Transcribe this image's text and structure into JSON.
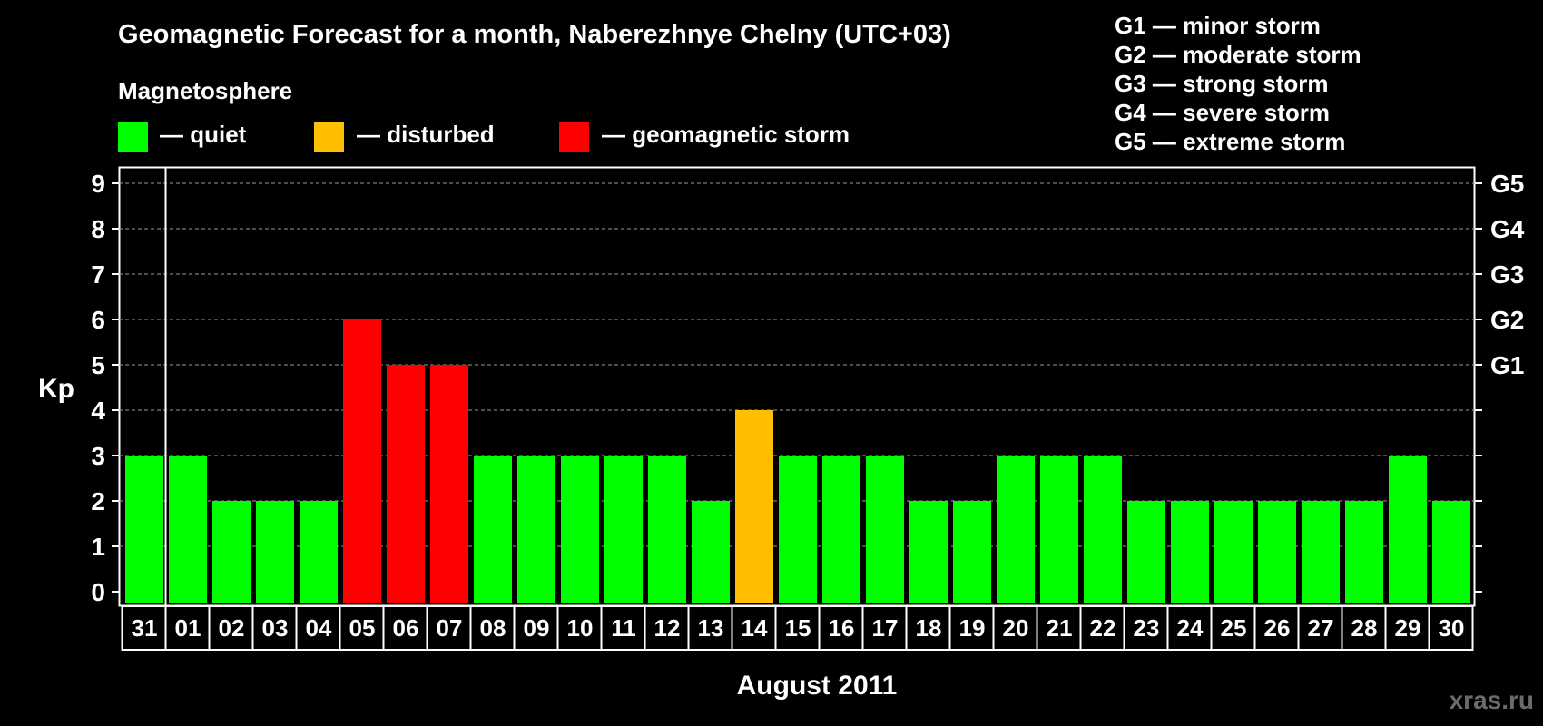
{
  "chart_data": {
    "type": "bar",
    "title": "Geomagnetic Forecast for a month, Naberezhnye Chelny (UTC+03)",
    "legend_title": "Magnetosphere",
    "legend": [
      {
        "label": "— quiet",
        "color": "#00ff00"
      },
      {
        "label": "— disturbed",
        "color": "#ffbf00"
      },
      {
        "label": "— geomagnetic storm",
        "color": "#ff0000"
      }
    ],
    "storm_scale": [
      "G1 — minor storm",
      "G2 — moderate storm",
      "G3 — strong storm",
      "G4 — severe storm",
      "G5 — extreme storm"
    ],
    "ylabel": "Kp",
    "xlabel": "August 2011",
    "ylim": [
      0,
      9
    ],
    "yticks": [
      "0",
      "1",
      "2",
      "3",
      "4",
      "5",
      "6",
      "7",
      "8",
      "9"
    ],
    "right_ticks": [
      {
        "value": 5,
        "label": "G1"
      },
      {
        "value": 6,
        "label": "G2"
      },
      {
        "value": 7,
        "label": "G3"
      },
      {
        "value": 8,
        "label": "G4"
      },
      {
        "value": 9,
        "label": "G5"
      }
    ],
    "categories": [
      "31",
      "01",
      "02",
      "03",
      "04",
      "05",
      "06",
      "07",
      "08",
      "09",
      "10",
      "11",
      "12",
      "13",
      "14",
      "15",
      "16",
      "17",
      "18",
      "19",
      "20",
      "21",
      "22",
      "23",
      "24",
      "25",
      "26",
      "27",
      "28",
      "29",
      "30"
    ],
    "values": [
      3,
      3,
      2,
      2,
      2,
      6,
      5,
      5,
      3,
      3,
      3,
      3,
      3,
      2,
      4,
      3,
      3,
      3,
      2,
      2,
      3,
      3,
      3,
      2,
      2,
      2,
      2,
      2,
      2,
      3,
      2
    ],
    "bar_colors": [
      "#00ff00",
      "#00ff00",
      "#00ff00",
      "#00ff00",
      "#00ff00",
      "#ff0000",
      "#ff0000",
      "#ff0000",
      "#00ff00",
      "#00ff00",
      "#00ff00",
      "#00ff00",
      "#00ff00",
      "#00ff00",
      "#ffbf00",
      "#00ff00",
      "#00ff00",
      "#00ff00",
      "#00ff00",
      "#00ff00",
      "#00ff00",
      "#00ff00",
      "#00ff00",
      "#00ff00",
      "#00ff00",
      "#00ff00",
      "#00ff00",
      "#00ff00",
      "#00ff00",
      "#00ff00",
      "#00ff00"
    ],
    "grid": "dashed horizontal"
  },
  "watermark": "xras.ru"
}
